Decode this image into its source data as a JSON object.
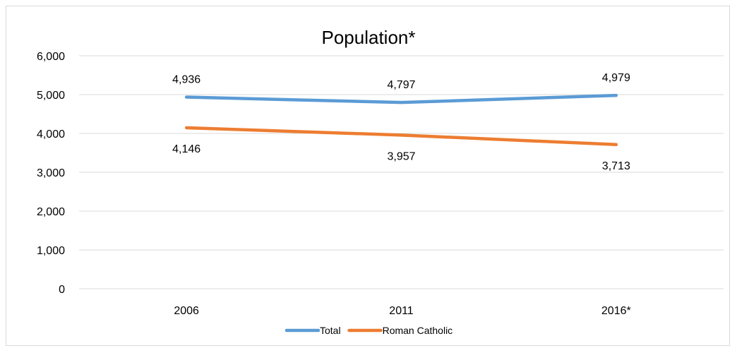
{
  "chart_data": {
    "type": "line",
    "title": "Population*",
    "categories": [
      "2006",
      "2011",
      "2016*"
    ],
    "series": [
      {
        "name": "Total",
        "values": [
          4936,
          4797,
          4979
        ],
        "labels": [
          "4,936",
          "4,797",
          "4,979"
        ],
        "color": "#5b9bd5"
      },
      {
        "name": "Roman Catholic",
        "values": [
          4146,
          3957,
          3713
        ],
        "labels": [
          "4,146",
          "3,957",
          "3,713"
        ],
        "color": "#ed7d31"
      }
    ],
    "ylim": [
      0,
      6000
    ],
    "yticks": [
      {
        "value": 0,
        "label": "0"
      },
      {
        "value": 1000,
        "label": "1,000"
      },
      {
        "value": 2000,
        "label": "2,000"
      },
      {
        "value": 3000,
        "label": "3,000"
      },
      {
        "value": 4000,
        "label": "4,000"
      },
      {
        "value": 5000,
        "label": "5,000"
      },
      {
        "value": 6000,
        "label": "6,000"
      }
    ],
    "grid": true,
    "legend": "bottom",
    "gridline_color": "#d9d9d9"
  }
}
